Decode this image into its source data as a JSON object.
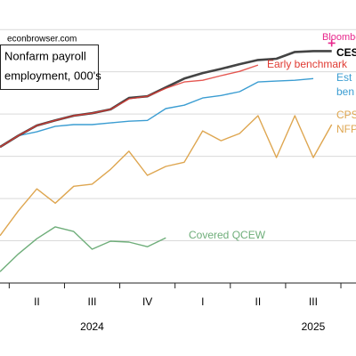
{
  "chart_data": {
    "type": "line",
    "source": "econbrowser.com",
    "title_lines": [
      "Nonfarm payroll",
      "employment, 000's"
    ],
    "xlim": [
      3,
      22.32
    ],
    "ylim": [
      0,
      6.7
    ],
    "yticks": [
      1,
      2,
      3,
      4,
      5,
      6
    ],
    "grid": true,
    "xminor_ticks": [
      3.5,
      6.5,
      9.5,
      12.5,
      15.5,
      18.5,
      21.5
    ],
    "xticks": [
      {
        "value": 5,
        "label": "II"
      },
      {
        "value": 8,
        "label": "III"
      },
      {
        "value": 11,
        "label": "IV"
      },
      {
        "value": 14,
        "label": "I"
      },
      {
        "value": 17,
        "label": "II"
      },
      {
        "value": 20,
        "label": "III"
      }
    ],
    "year_labels": [
      {
        "value": 8,
        "label": "2024"
      },
      {
        "value": 20,
        "label": "2025"
      }
    ],
    "series": [
      {
        "label": [
          "CES"
        ],
        "color": "#444444",
        "width": 2.6,
        "x": [
          3,
          4,
          5,
          6,
          7,
          8,
          9,
          10,
          11,
          12,
          13,
          14,
          15,
          16,
          17,
          18,
          19,
          20,
          21
        ],
        "values": [
          3.22,
          3.49,
          3.73,
          3.85,
          3.96,
          4.02,
          4.11,
          4.38,
          4.42,
          4.63,
          4.84,
          4.97,
          5.07,
          5.18,
          5.28,
          5.31,
          5.47,
          5.49,
          5.49
        ]
      },
      {
        "label": [
          "Early benchmark"
        ],
        "color": "#e03a32",
        "width": 1.4,
        "x": [
          3,
          4,
          5,
          6,
          7,
          8,
          9,
          10,
          11,
          12,
          13,
          14,
          15,
          16,
          17
        ],
        "values": [
          3.22,
          3.49,
          3.73,
          3.85,
          3.96,
          4.02,
          4.11,
          4.36,
          4.42,
          4.61,
          4.76,
          4.8,
          4.91,
          5.01,
          5.16
        ]
      },
      {
        "label": [
          "Est",
          "ben"
        ],
        "color": "#3b9dd2",
        "width": 1.4,
        "x": [
          3,
          4,
          5,
          6,
          7,
          8,
          9,
          10,
          11,
          12,
          13,
          14,
          15,
          16,
          17,
          18,
          19,
          20
        ],
        "values": [
          3.22,
          3.49,
          3.58,
          3.71,
          3.75,
          3.75,
          3.79,
          3.83,
          3.85,
          4.13,
          4.21,
          4.38,
          4.44,
          4.53,
          4.76,
          4.78,
          4.8,
          4.84
        ]
      },
      {
        "label": [
          "CPS",
          "NFP"
        ],
        "color": "#dea650",
        "width": 1.4,
        "x": [
          3,
          4,
          5,
          6,
          7,
          8,
          9,
          10,
          11,
          12,
          13,
          14,
          15,
          16,
          17,
          18,
          19,
          20,
          21
        ],
        "values": [
          1.12,
          1.71,
          2.23,
          1.89,
          2.29,
          2.34,
          2.69,
          3.12,
          2.55,
          2.76,
          2.86,
          3.6,
          3.37,
          3.54,
          3.96,
          2.97,
          3.96,
          2.97,
          3.75
        ]
      },
      {
        "label": [
          "Covered QCEW"
        ],
        "color": "#6fae7a",
        "width": 1.4,
        "x": [
          3,
          4,
          5,
          6,
          7,
          8,
          9,
          10,
          11,
          12
        ],
        "values": [
          0.27,
          0.69,
          1.05,
          1.33,
          1.22,
          0.8,
          0.99,
          0.97,
          0.86,
          1.07
        ]
      }
    ],
    "marker": {
      "label": "Bloomberg",
      "color": "#e8288c",
      "x": 21,
      "value": 5.68
    }
  }
}
